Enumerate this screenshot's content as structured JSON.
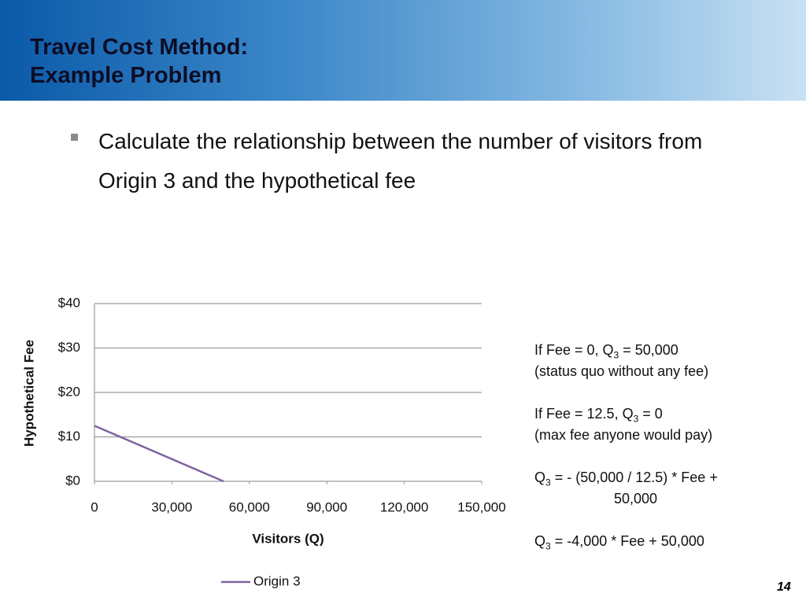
{
  "title": [
    "Travel Cost Method:",
    "Example Problem"
  ],
  "bullet": "Calculate the relationship between the number of visitors from Origin 3 and the hypothetical fee",
  "chart_data": {
    "type": "line",
    "x": [
      0,
      50000
    ],
    "series": [
      {
        "name": "Origin 3",
        "color": "#8064a2",
        "values": [
          12.5,
          0
        ]
      }
    ],
    "xlabel": "Visitors (Q)",
    "ylabel": "Hypothetical Fee",
    "xlim": [
      0,
      150000
    ],
    "xticks": [
      0,
      {
        "value": 30000,
        "label": "30,000"
      },
      {
        "value": 60000,
        "label": "60,000"
      },
      {
        "value": 90000,
        "label": "90,000"
      },
      {
        "value": 120000,
        "label": "120,000"
      },
      {
        "value": 150000,
        "label": "150,000"
      }
    ],
    "ylim": [
      0,
      40
    ],
    "yticks": [
      {
        "value": 0,
        "label": "$0"
      },
      {
        "value": 10,
        "label": "$10"
      },
      {
        "value": 20,
        "label": "$20"
      },
      {
        "value": 30,
        "label": "$30"
      },
      {
        "value": 40,
        "label": "$40"
      }
    ],
    "grid": true,
    "legend": "bottom"
  },
  "notes": [
    [
      "If Fee = 0, Q",
      "3",
      " = 50,000"
    ],
    [
      "(status quo without any fee)"
    ],
    [
      "If Fee = 12.5, Q",
      "3",
      " = 0"
    ],
    [
      "(max fee anyone would pay)"
    ],
    [
      "Q",
      "3",
      " = - (50,000 / 12.5) * Fee +"
    ],
    [
      "50,000"
    ],
    [
      "Q",
      "3",
      " = -4,000 * Fee + 50,000"
    ]
  ],
  "page_number": "14"
}
